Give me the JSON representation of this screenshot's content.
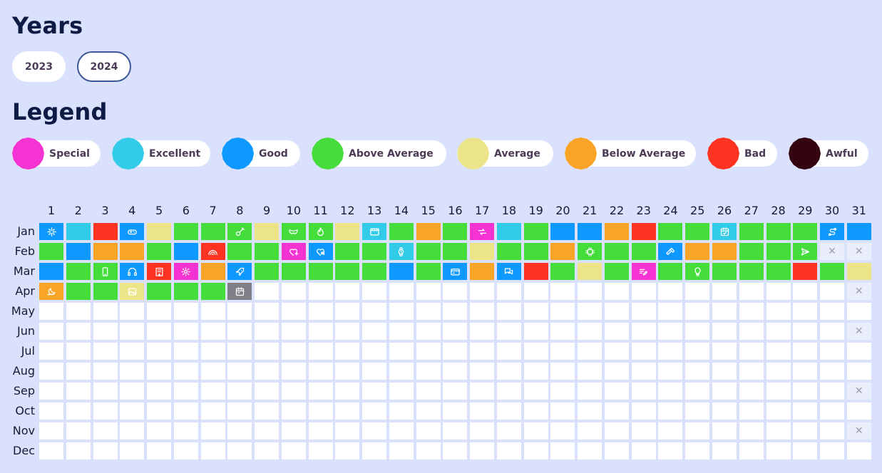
{
  "years": {
    "title": "Years",
    "buttons": [
      {
        "label": "2023",
        "selected": false
      },
      {
        "label": "2024",
        "selected": true
      }
    ]
  },
  "legend": {
    "title": "Legend",
    "items": [
      {
        "key": "special",
        "label": "Special",
        "color": "#f533d2"
      },
      {
        "key": "excellent",
        "label": "Excellent",
        "color": "#33cce8"
      },
      {
        "key": "good",
        "label": "Good",
        "color": "#0d99ff"
      },
      {
        "key": "above",
        "label": "Above Average",
        "color": "#44dd3c"
      },
      {
        "key": "average",
        "label": "Average",
        "color": "#ece488"
      },
      {
        "key": "below",
        "label": "Below Average",
        "color": "#f9a427"
      },
      {
        "key": "bad",
        "label": "Bad",
        "color": "#ff3322"
      },
      {
        "key": "awful",
        "label": "Awful",
        "color": "#340510"
      }
    ]
  },
  "calendar": {
    "days": [
      "1",
      "2",
      "3",
      "4",
      "5",
      "6",
      "7",
      "8",
      "9",
      "10",
      "11",
      "12",
      "13",
      "14",
      "15",
      "16",
      "17",
      "18",
      "19",
      "20",
      "21",
      "22",
      "23",
      "24",
      "25",
      "26",
      "27",
      "28",
      "29",
      "30",
      "31"
    ],
    "months": [
      {
        "label": "Jan",
        "cells": [
          [
            "good",
            "sparkle-icon"
          ],
          [
            "excellent",
            ""
          ],
          [
            "bad",
            ""
          ],
          [
            "good",
            "gamepad-icon"
          ],
          [
            "average",
            ""
          ],
          [
            "above",
            ""
          ],
          [
            "above",
            ""
          ],
          [
            "above",
            "guitar-icon"
          ],
          [
            "average",
            ""
          ],
          [
            "above",
            "mask-icon"
          ],
          [
            "above",
            "flame-icon"
          ],
          [
            "average",
            ""
          ],
          [
            "excellent",
            "film-icon"
          ],
          [
            "above",
            ""
          ],
          [
            "below",
            ""
          ],
          [
            "above",
            ""
          ],
          [
            "special",
            "arrows-icon"
          ],
          [
            "excellent",
            ""
          ],
          [
            "above",
            ""
          ],
          [
            "good",
            ""
          ],
          [
            "good",
            ""
          ],
          [
            "below",
            ""
          ],
          [
            "bad",
            ""
          ],
          [
            "above",
            ""
          ],
          [
            "above",
            ""
          ],
          [
            "excellent",
            "calendar-check-icon"
          ],
          [
            "above",
            ""
          ],
          [
            "above",
            ""
          ],
          [
            "above",
            ""
          ],
          [
            "good",
            "route-icon"
          ],
          [
            "good",
            ""
          ]
        ]
      },
      {
        "label": "Feb",
        "cells": [
          [
            "above",
            ""
          ],
          [
            "good",
            ""
          ],
          [
            "below",
            ""
          ],
          [
            "below",
            ""
          ],
          [
            "above",
            ""
          ],
          [
            "good",
            ""
          ],
          [
            "bad",
            "rainbow-icon"
          ],
          [
            "above",
            ""
          ],
          [
            "above",
            ""
          ],
          [
            "special",
            "heart-plus-icon"
          ],
          [
            "good",
            "heart-chat-icon"
          ],
          [
            "above",
            ""
          ],
          [
            "above",
            ""
          ],
          [
            "excellent",
            "watch-icon"
          ],
          [
            "above",
            ""
          ],
          [
            "above",
            ""
          ],
          [
            "average",
            ""
          ],
          [
            "above",
            ""
          ],
          [
            "above",
            ""
          ],
          [
            "below",
            ""
          ],
          [
            "above",
            "cpu-icon"
          ],
          [
            "above",
            ""
          ],
          [
            "above",
            ""
          ],
          [
            "good",
            "hammer-icon"
          ],
          [
            "below",
            ""
          ],
          [
            "below",
            ""
          ],
          [
            "above",
            ""
          ],
          [
            "above",
            ""
          ],
          [
            "above",
            "send-icon"
          ],
          [
            "none",
            "x"
          ],
          [
            "none",
            "x"
          ]
        ]
      },
      {
        "label": "Mar",
        "cells": [
          [
            "good",
            ""
          ],
          [
            "above",
            ""
          ],
          [
            "above",
            "phone-icon"
          ],
          [
            "good",
            "headphones-icon"
          ],
          [
            "bad",
            "building-icon"
          ],
          [
            "special",
            "gear-icon"
          ],
          [
            "below",
            ""
          ],
          [
            "good",
            "rocket-icon"
          ],
          [
            "above",
            ""
          ],
          [
            "above",
            ""
          ],
          [
            "above",
            ""
          ],
          [
            "above",
            ""
          ],
          [
            "above",
            ""
          ],
          [
            "good",
            ""
          ],
          [
            "above",
            ""
          ],
          [
            "good",
            "card-icon"
          ],
          [
            "below",
            ""
          ],
          [
            "good",
            "chat-icon"
          ],
          [
            "bad",
            ""
          ],
          [
            "above",
            ""
          ],
          [
            "average",
            ""
          ],
          [
            "above",
            ""
          ],
          [
            "special",
            "edit-icon"
          ],
          [
            "above",
            ""
          ],
          [
            "above",
            "lightbulb-icon"
          ],
          [
            "above",
            ""
          ],
          [
            "above",
            ""
          ],
          [
            "above",
            ""
          ],
          [
            "bad",
            ""
          ],
          [
            "above",
            ""
          ],
          [
            "average",
            ""
          ]
        ]
      },
      {
        "label": "Apr",
        "cells": [
          [
            "below",
            "moon-icon"
          ],
          [
            "above",
            ""
          ],
          [
            "above",
            ""
          ],
          [
            "average",
            "image-icon"
          ],
          [
            "above",
            ""
          ],
          [
            "above",
            ""
          ],
          [
            "above",
            ""
          ],
          [
            "today",
            "calendar-icon"
          ],
          [
            "empty",
            ""
          ],
          [
            "empty",
            ""
          ],
          [
            "empty",
            ""
          ],
          [
            "empty",
            ""
          ],
          [
            "empty",
            ""
          ],
          [
            "empty",
            ""
          ],
          [
            "empty",
            ""
          ],
          [
            "empty",
            ""
          ],
          [
            "empty",
            ""
          ],
          [
            "empty",
            ""
          ],
          [
            "empty",
            ""
          ],
          [
            "empty",
            ""
          ],
          [
            "empty",
            ""
          ],
          [
            "empty",
            ""
          ],
          [
            "empty",
            ""
          ],
          [
            "empty",
            ""
          ],
          [
            "empty",
            ""
          ],
          [
            "empty",
            ""
          ],
          [
            "empty",
            ""
          ],
          [
            "empty",
            ""
          ],
          [
            "empty",
            ""
          ],
          [
            "empty",
            ""
          ],
          [
            "none",
            "x"
          ]
        ]
      },
      {
        "label": "May",
        "cells": "empty31"
      },
      {
        "label": "Jun",
        "cells": "empty30"
      },
      {
        "label": "Jul",
        "cells": "empty31"
      },
      {
        "label": "Aug",
        "cells": "empty31"
      },
      {
        "label": "Sep",
        "cells": "empty30"
      },
      {
        "label": "Oct",
        "cells": "empty31"
      },
      {
        "label": "Nov",
        "cells": "empty30"
      },
      {
        "label": "Dec",
        "cells": "empty31"
      }
    ],
    "x_mark": "✕"
  },
  "colors": {
    "empty": "#ffffff",
    "today": "#7f7f88",
    "none": "#eaedfa"
  }
}
